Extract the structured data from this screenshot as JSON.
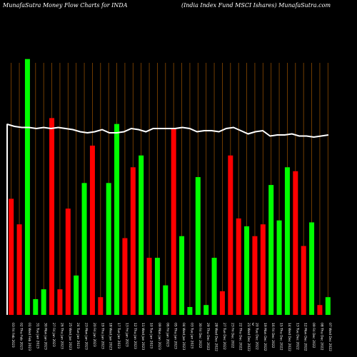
{
  "header": {
    "left_title": "MunafaSutra  Money Flow  Charts for INDA",
    "right_title": "(India  Index Fund MSCI Ishares) MunafaSutra.com"
  },
  "chart_data": {
    "type": "bar",
    "currency_label": "€",
    "colors": {
      "up": "#00ff00",
      "down": "#ff0000",
      "grid": "#8b4a00",
      "line": "#ffffff",
      "background": "#000000"
    },
    "bars": [
      {
        "date": "03 Fri Feb 2023",
        "value": 0.59,
        "dir": "down"
      },
      {
        "date": "02 Thu Feb 2023",
        "value": 0.46,
        "dir": "down"
      },
      {
        "date": "01 Wed Feb 2023",
        "value": 1.3,
        "dir": "up"
      },
      {
        "date": "31 Tue Jan 2023",
        "value": 0.08,
        "dir": "up"
      },
      {
        "date": "30 Mon Jan 2023",
        "value": 0.13,
        "dir": "up"
      },
      {
        "date": "27 Fri Jan 2023",
        "value": 1.0,
        "dir": "down"
      },
      {
        "date": "26 Thu Jan 2023",
        "value": 0.13,
        "dir": "down"
      },
      {
        "date": "25 Wed Jan 2023",
        "value": 0.54,
        "dir": "down"
      },
      {
        "date": "24 Tue Jan 2023",
        "value": 0.2,
        "dir": "up"
      },
      {
        "date": "23 Mon Jan 2023",
        "value": 0.67,
        "dir": "up"
      },
      {
        "date": "20 Fri Jan 2023",
        "value": 0.86,
        "dir": "down"
      },
      {
        "date": "19 Thu Jan 2023",
        "value": 0.09,
        "dir": "down"
      },
      {
        "date": "18 Wed Jan 2023",
        "value": 0.67,
        "dir": "up"
      },
      {
        "date": "17 Tue Jan 2023",
        "value": 0.97,
        "dir": "up"
      },
      {
        "date": "13 Fri Jan 2023",
        "value": 0.39,
        "dir": "down"
      },
      {
        "date": "12 Thu Jan 2023",
        "value": 0.75,
        "dir": "down"
      },
      {
        "date": "11 Wed Jan 2023",
        "value": 0.81,
        "dir": "up"
      },
      {
        "date": "10 Tue Jan 2023",
        "value": 0.29,
        "dir": "down"
      },
      {
        "date": "09 Mon Jan 2023",
        "value": 0.29,
        "dir": "up"
      },
      {
        "date": "06 Fri Jan 2023",
        "value": 0.15,
        "dir": "up"
      },
      {
        "date": "05 Thu Jan 2023",
        "value": 0.95,
        "dir": "down"
      },
      {
        "date": "04 Wed Jan 2023",
        "value": 0.4,
        "dir": "up"
      },
      {
        "date": "03 Tue Jan 2023",
        "value": 0.04,
        "dir": "up"
      },
      {
        "date": "30 Fri Dec 2022",
        "value": 0.7,
        "dir": "up"
      },
      {
        "date": "29 Thu Dec 2022",
        "value": 0.05,
        "dir": "up"
      },
      {
        "date": "28 Wed Dec 2022",
        "value": 0.29,
        "dir": "up"
      },
      {
        "date": "27 Tue Dec 2022",
        "value": 0.12,
        "dir": "down"
      },
      {
        "date": "23 Fri Dec 2022",
        "value": 0.81,
        "dir": "down"
      },
      {
        "date": "22 Thu Dec 2022",
        "value": 0.49,
        "dir": "down"
      },
      {
        "date": "21 Wed Dec 2022",
        "value": 0.45,
        "dir": "up"
      },
      {
        "date": "20 Tue Dec 2022",
        "value": 0.4,
        "dir": "down"
      },
      {
        "date": "19 Mon Dec 2022",
        "value": 0.46,
        "dir": "down"
      },
      {
        "date": "16 Fri Dec 2022",
        "value": 0.66,
        "dir": "up"
      },
      {
        "date": "15 Thu Dec 2022",
        "value": 0.48,
        "dir": "up"
      },
      {
        "date": "14 Wed Dec 2022",
        "value": 0.75,
        "dir": "up"
      },
      {
        "date": "13 Tue Dec 2022",
        "value": 0.73,
        "dir": "down"
      },
      {
        "date": "12 Mon Dec 2022",
        "value": 0.35,
        "dir": "down"
      },
      {
        "date": "09 Fri Dec 2022",
        "value": 0.47,
        "dir": "up"
      },
      {
        "date": "08 Thu Dec 2022",
        "value": 0.05,
        "dir": "down"
      },
      {
        "date": "07 Wed Dec 2022",
        "value": 0.09,
        "dir": "up"
      }
    ],
    "line": [
      1.04,
      1.03,
      1.025,
      1.025,
      1.02,
      1.025,
      1.02,
      1.025,
      1.02,
      1.015,
      1.005,
      1.0,
      1.005,
      1.015,
      1.0,
      1.0,
      1.005,
      1.02,
      1.015,
      1.005,
      1.02,
      1.02,
      1.02,
      1.02,
      1.025,
      1.02,
      1.005,
      1.01,
      1.01,
      1.005,
      1.02,
      1.025,
      1.01,
      0.995,
      1.005,
      1.01,
      0.985,
      0.99,
      0.99,
      0.995,
      0.985,
      0.985,
      0.98,
      0.985,
      0.99
    ],
    "ylim": [
      0,
      1.6
    ]
  }
}
